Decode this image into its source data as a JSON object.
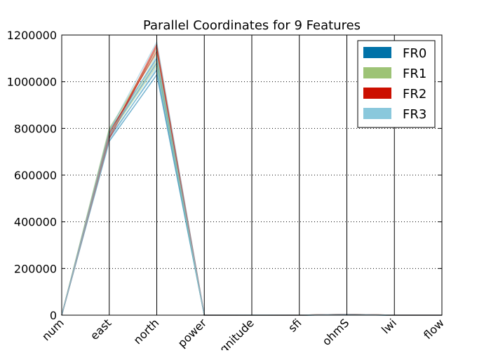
{
  "chart_data": {
    "type": "parallel_coordinates",
    "title": "Parallel Coordinates for 9 Features",
    "axes": [
      "num",
      "east",
      "north",
      "power",
      "magnitude",
      "sfi",
      "ohmS",
      "lwi",
      "flow"
    ],
    "ylim": [
      0,
      1200000
    ],
    "yticks": [
      0,
      200000,
      400000,
      600000,
      800000,
      1000000,
      1200000
    ],
    "grid": true,
    "legend_position": "top-right",
    "series": [
      {
        "name": "FR0",
        "color": "#0072A8",
        "lines": [
          [
            5,
            760000,
            1050000,
            0,
            300,
            10,
            2000,
            100,
            20
          ],
          [
            8,
            775000,
            1080000,
            0,
            350,
            12,
            2500,
            120,
            25
          ],
          [
            12,
            745000,
            1030000,
            0,
            280,
            9,
            1800,
            90,
            18
          ],
          [
            15,
            790000,
            1100000,
            0,
            320,
            11,
            2200,
            110,
            22
          ]
        ]
      },
      {
        "name": "FR1",
        "color": "#9DC376",
        "lines": [
          [
            6,
            800000,
            1120000,
            0,
            330,
            13,
            3500,
            130,
            28
          ],
          [
            10,
            785000,
            1090000,
            0,
            310,
            10,
            3000,
            105,
            21
          ],
          [
            14,
            795000,
            1140000,
            0,
            340,
            12,
            4000,
            125,
            26
          ],
          [
            18,
            770000,
            1070000,
            0,
            290,
            9,
            2800,
            95,
            19
          ]
        ]
      },
      {
        "name": "FR2",
        "color": "#CC0F00",
        "lines": [
          [
            7,
            765000,
            1160000,
            0,
            360,
            14,
            3800,
            140,
            30
          ],
          [
            11,
            755000,
            1150000,
            0,
            300,
            11,
            3200,
            115,
            24
          ],
          [
            16,
            780000,
            1130000,
            0,
            320,
            12,
            3600,
            120,
            23
          ]
        ]
      },
      {
        "name": "FR3",
        "color": "#8AC8DC",
        "lines": [
          [
            9,
            750000,
            1060000,
            0,
            310,
            10,
            2400,
            100,
            20
          ],
          [
            13,
            770000,
            1110000,
            0,
            330,
            11,
            2900,
            115,
            22
          ],
          [
            17,
            790000,
            1170000,
            0,
            340,
            13,
            3300,
            125,
            27
          ]
        ]
      }
    ]
  }
}
